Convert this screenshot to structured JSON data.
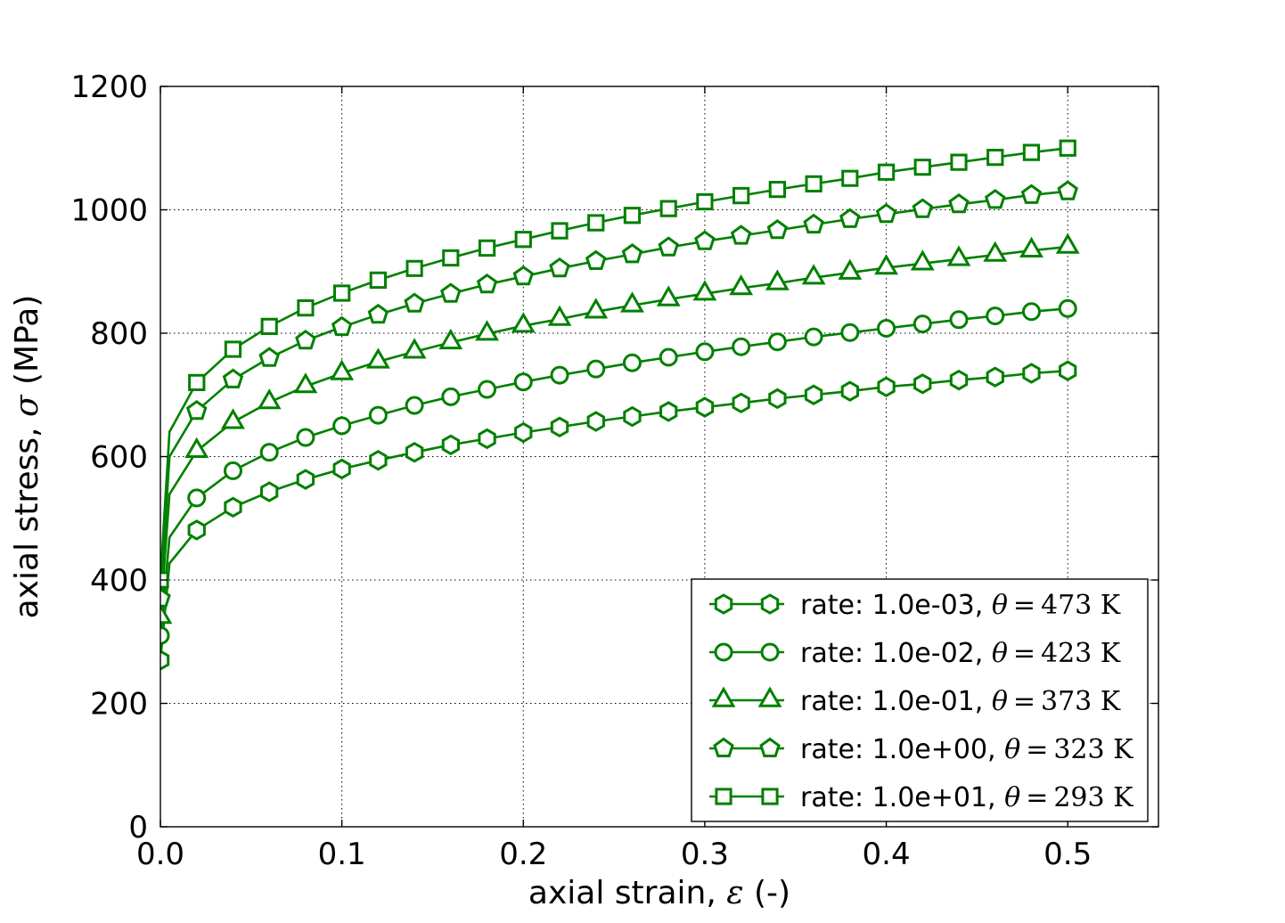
{
  "figure": {
    "background": "#ffffff",
    "line_color": "#008000",
    "marker_face": "#ffffff",
    "grid_color": "#000000",
    "text_color": "#000000"
  },
  "chart_data": {
    "type": "line",
    "title": "",
    "xlabel": "axial strain, ε (-)",
    "ylabel": "axial stress, σ (MPa)",
    "xlim": [
      0,
      0.55
    ],
    "ylim": [
      0,
      1200
    ],
    "xticks": [
      0.0,
      0.1,
      0.2,
      0.3,
      0.4,
      0.5
    ],
    "yticks": [
      0,
      200,
      400,
      600,
      800,
      1000,
      1200
    ],
    "grid": true,
    "grid_style": "dotted",
    "legend_position": "lower right",
    "strain": [
      0,
      0.005,
      0.02,
      0.04,
      0.06,
      0.08,
      0.1,
      0.12,
      0.14,
      0.16,
      0.18,
      0.2,
      0.22,
      0.24,
      0.26,
      0.28,
      0.3,
      0.32,
      0.34,
      0.36,
      0.38,
      0.4,
      0.42,
      0.44,
      0.46,
      0.48,
      0.5
    ],
    "series": [
      {
        "label": "rate: 1.0e-03, θ=473 K",
        "rate_text": "rate: 1.0e-03,",
        "theta_value": "473",
        "marker": "hexagon",
        "color": "#008000",
        "stress": [
          270,
          427,
          481,
          518,
          543,
          563,
          580,
          594,
          607,
          619,
          629,
          639,
          648,
          657,
          665,
          673,
          680,
          687,
          694,
          700,
          706,
          713,
          718,
          724,
          729,
          735,
          739
        ]
      },
      {
        "label": "rate: 1.0e-02, θ=423 K",
        "rate_text": "rate: 1.0e-02,",
        "theta_value": "423",
        "marker": "circle",
        "color": "#008000",
        "stress": [
          310,
          469,
          533,
          577,
          607,
          631,
          650,
          667,
          683,
          697,
          709,
          721,
          732,
          742,
          752,
          761,
          770,
          778,
          786,
          794,
          801,
          808,
          815,
          822,
          828,
          835,
          840
        ]
      },
      {
        "label": "rate: 1.0e-01, θ=373 K",
        "rate_text": "rate: 1.0e-01,",
        "theta_value": "373",
        "marker": "triangle",
        "color": "#008000",
        "stress": [
          340,
          539,
          609,
          656,
          688,
          714,
          735,
          754,
          770,
          785,
          799,
          812,
          823,
          835,
          845,
          855,
          864,
          873,
          881,
          890,
          898,
          906,
          913,
          920,
          927,
          934,
          940
        ]
      },
      {
        "label": "rate: 1.0e+00, θ=323 K",
        "rate_text": "rate: 1.0e+00,",
        "theta_value": "323",
        "marker": "pentagon",
        "color": "#008000",
        "stress": [
          370,
          600,
          674,
          725,
          760,
          788,
          810,
          830,
          848,
          864,
          879,
          892,
          905,
          917,
          928,
          939,
          949,
          958,
          967,
          976,
          985,
          993,
          1001,
          1009,
          1016,
          1024,
          1030
        ]
      },
      {
        "label": "rate: 1.0e+01, θ=293 K",
        "rate_text": "rate: 1.0e+01,",
        "theta_value": "293",
        "marker": "square",
        "color": "#008000",
        "stress": [
          400,
          640,
          720,
          774,
          811,
          841,
          865,
          886,
          905,
          922,
          938,
          952,
          966,
          979,
          991,
          1002,
          1013,
          1023,
          1033,
          1042,
          1051,
          1061,
          1069,
          1077,
          1085,
          1093,
          1100
        ]
      }
    ]
  }
}
